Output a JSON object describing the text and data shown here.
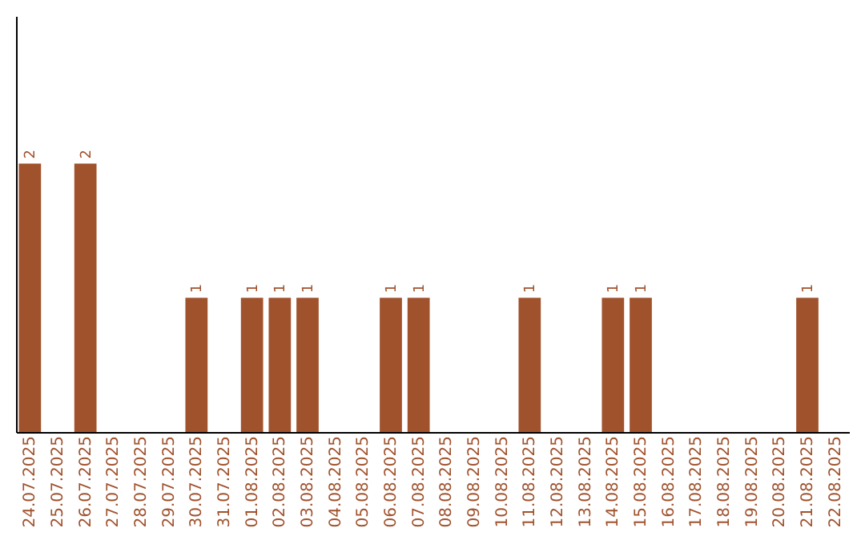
{
  "chart_data": {
    "type": "bar",
    "categories": [
      "24.07.2025",
      "25.07.2025",
      "26.07.2025",
      "27.07.2025",
      "28.07.2025",
      "29.07.2025",
      "30.07.2025",
      "31.07.2025",
      "01.08.2025",
      "02.08.2025",
      "03.08.2025",
      "04.08.2025",
      "05.08.2025",
      "06.08.2025",
      "07.08.2025",
      "08.08.2025",
      "09.08.2025",
      "10.08.2025",
      "11.08.2025",
      "12.08.2025",
      "13.08.2025",
      "14.08.2025",
      "15.08.2025",
      "16.08.2025",
      "17.08.2025",
      "18.08.2025",
      "19.08.2025",
      "20.08.2025",
      "21.08.2025",
      "22.08.2025"
    ],
    "values": [
      2,
      0,
      2,
      0,
      0,
      0,
      1,
      0,
      1,
      1,
      1,
      0,
      0,
      1,
      1,
      0,
      0,
      0,
      1,
      0,
      0,
      1,
      1,
      0,
      0,
      0,
      0,
      0,
      1,
      0
    ],
    "value_labels": [
      "2",
      null,
      "2",
      null,
      null,
      null,
      "1",
      null,
      "1",
      "1",
      "1",
      null,
      null,
      "1",
      "1",
      null,
      null,
      null,
      "1",
      null,
      null,
      "1",
      "1",
      null,
      null,
      null,
      null,
      null,
      "1",
      null
    ],
    "color": "#a0522d",
    "ylim": [
      0,
      3.1
    ],
    "tick_labels": "x",
    "grid": false
  }
}
